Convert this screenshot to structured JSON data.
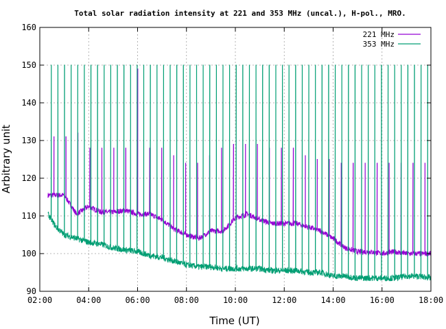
{
  "chart_data": {
    "type": "line",
    "title": "Total solar radiation intensity at 221 and 353 MHz (uncal.), H-pol., MRO.",
    "xlabel": "Time (UT)",
    "ylabel": "Arbitrary unit",
    "xlim": [
      "02:00",
      "18:00"
    ],
    "ylim": [
      90,
      160
    ],
    "x_ticks": [
      "02:00",
      "04:00",
      "06:00",
      "08:00",
      "10:00",
      "12:00",
      "14:00",
      "16:00",
      "18:00"
    ],
    "y_ticks": [
      90,
      100,
      110,
      120,
      130,
      140,
      150,
      160
    ],
    "grid": true,
    "legend_position": "top-right",
    "colors": {
      "s221": "#9400d3",
      "s353": "#009e73"
    },
    "series": [
      {
        "name": "221 MHz",
        "color": "#9400d3",
        "x": [
          "02:20",
          "03:00",
          "03:30",
          "04:00",
          "04:30",
          "05:00",
          "05:30",
          "06:00",
          "06:30",
          "07:00",
          "07:30",
          "08:00",
          "08:30",
          "09:00",
          "09:30",
          "10:00",
          "10:30",
          "11:00",
          "11:30",
          "12:00",
          "12:30",
          "13:00",
          "13:30",
          "14:00",
          "14:30",
          "15:00",
          "15:30",
          "16:00",
          "16:30",
          "17:00",
          "17:30",
          "18:00"
        ],
        "values": [
          115.5,
          115.5,
          110.5,
          112.5,
          111,
          111,
          111.5,
          110.5,
          110.5,
          109,
          106.5,
          105,
          104,
          106,
          106,
          109.5,
          110.5,
          109,
          108,
          108,
          108,
          107,
          106,
          104,
          101.5,
          100.5,
          100.5,
          100,
          100.5,
          100,
          100,
          100
        ],
        "spikes": {
          "values": [
            131,
            131,
            132,
            128,
            128,
            128,
            128,
            149,
            128,
            128,
            126,
            124,
            124,
            126,
            128,
            129,
            129,
            129,
            128,
            128,
            128,
            126,
            125,
            125,
            124,
            124,
            124,
            124,
            124,
            124,
            124,
            124
          ]
        }
      },
      {
        "name": "353 MHz",
        "color": "#009e73",
        "x": [
          "02:20",
          "02:40",
          "03:00",
          "03:30",
          "04:00",
          "04:30",
          "05:00",
          "05:30",
          "06:00",
          "06:30",
          "07:00",
          "07:30",
          "08:00",
          "08:30",
          "09:00",
          "09:30",
          "10:00",
          "10:30",
          "11:00",
          "11:30",
          "12:00",
          "12:30",
          "13:00",
          "13:30",
          "14:00",
          "14:30",
          "15:00",
          "15:30",
          "16:00",
          "16:30",
          "17:00",
          "17:30",
          "18:00"
        ],
        "values": [
          110.5,
          107,
          105,
          104,
          103,
          102.5,
          101.5,
          101,
          100.5,
          99.5,
          99,
          98,
          97,
          96.5,
          96.5,
          96,
          96,
          96,
          96,
          95.5,
          95.5,
          95.5,
          95,
          95,
          94,
          94,
          93.5,
          93.5,
          93.5,
          93.5,
          94,
          94,
          93.5
        ],
        "spikes": {
          "value": 150
        }
      }
    ]
  }
}
